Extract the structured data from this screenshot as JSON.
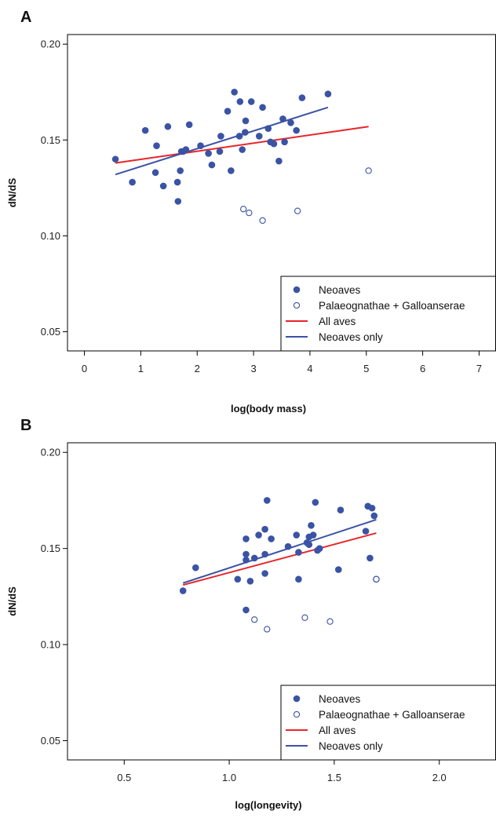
{
  "colors": {
    "neoaves": "#3a53a4",
    "all_aves_line": "#e8252a",
    "neoaves_line": "#3a53a4"
  },
  "chart_data": [
    {
      "panel_label": "A",
      "type": "scatter",
      "xlabel": "log(body mass)",
      "ylabel": "dN/dS",
      "xlim": [
        -0.3,
        7.3
      ],
      "ylim": [
        0.04,
        0.205
      ],
      "xticks": [
        0,
        1,
        2,
        3,
        4,
        5,
        6,
        7
      ],
      "xtick_labels": [
        "0",
        "1",
        "2",
        "3",
        "4",
        "5",
        "6",
        "7"
      ],
      "yticks": [
        0.05,
        0.1,
        0.15,
        0.2
      ],
      "ytick_labels": [
        "0.05",
        "0.10",
        "0.15",
        "0.20"
      ],
      "legend_position": "bottom-right",
      "series": [
        {
          "name": "Neoaves",
          "kind": "points",
          "marker": "filled",
          "x": [
            0.55,
            0.85,
            1.08,
            1.28,
            1.48,
            1.66,
            1.86,
            2.06,
            2.26,
            2.42,
            2.54,
            2.66,
            2.76,
            2.86,
            2.96,
            3.16,
            3.26,
            3.36,
            3.52,
            3.66,
            3.76,
            3.86,
            4.32,
            1.26,
            1.4,
            1.65,
            1.7,
            1.75,
            1.8,
            2.2,
            2.4,
            2.6,
            2.75,
            2.85,
            3.1,
            3.3,
            3.45,
            3.55,
            1.72,
            2.8
          ],
          "y": [
            0.14,
            0.128,
            0.155,
            0.147,
            0.157,
            0.118,
            0.158,
            0.147,
            0.137,
            0.152,
            0.165,
            0.175,
            0.17,
            0.16,
            0.17,
            0.167,
            0.156,
            0.148,
            0.161,
            0.159,
            0.155,
            0.172,
            0.174,
            0.133,
            0.126,
            0.128,
            0.134,
            0.144,
            0.145,
            0.143,
            0.144,
            0.134,
            0.152,
            0.154,
            0.152,
            0.149,
            0.139,
            0.149,
            0.144,
            0.145
          ]
        },
        {
          "name": "Palaeognathae + Galloanserae",
          "kind": "points",
          "marker": "open",
          "x": [
            2.82,
            2.92,
            3.16,
            3.78,
            5.04
          ],
          "y": [
            0.114,
            0.112,
            0.108,
            0.113,
            0.134
          ]
        },
        {
          "name": "All aves",
          "kind": "line",
          "x": [
            0.55,
            5.04
          ],
          "y": [
            0.138,
            0.157
          ]
        },
        {
          "name": "Neoaves only",
          "kind": "line",
          "x": [
            0.55,
            4.32
          ],
          "y": [
            0.132,
            0.167
          ]
        }
      ]
    },
    {
      "panel_label": "B",
      "type": "scatter",
      "xlabel": "log(longevity)",
      "ylabel": "dN/dS",
      "xlim": [
        0.23,
        2.27
      ],
      "ylim": [
        0.04,
        0.205
      ],
      "xticks": [
        0.5,
        1.0,
        1.5,
        2.0
      ],
      "xtick_labels": [
        "0.5",
        "1.0",
        "1.5",
        "2.0"
      ],
      "yticks": [
        0.05,
        0.1,
        0.15,
        0.2
      ],
      "ytick_labels": [
        "0.05",
        "0.10",
        "0.15",
        "0.20"
      ],
      "legend_position": "bottom-right",
      "series": [
        {
          "name": "Neoaves",
          "kind": "points",
          "marker": "filled",
          "x": [
            0.78,
            0.84,
            1.04,
            1.08,
            1.08,
            1.08,
            1.08,
            1.1,
            1.12,
            1.14,
            1.17,
            1.17,
            1.17,
            1.18,
            1.2,
            1.28,
            1.32,
            1.33,
            1.33,
            1.37,
            1.38,
            1.39,
            1.4,
            1.41,
            1.42,
            1.43,
            1.52,
            1.53,
            1.65,
            1.66,
            1.68,
            1.69,
            1.7,
            1.67,
            1.38
          ],
          "y": [
            0.128,
            0.14,
            0.134,
            0.155,
            0.147,
            0.144,
            0.118,
            0.133,
            0.145,
            0.157,
            0.16,
            0.147,
            0.137,
            0.175,
            0.155,
            0.151,
            0.157,
            0.148,
            0.134,
            0.153,
            0.156,
            0.162,
            0.157,
            0.174,
            0.149,
            0.15,
            0.139,
            0.17,
            0.159,
            0.172,
            0.171,
            0.167,
            0.134,
            0.145,
            0.152
          ]
        },
        {
          "name": "Palaeognathae + Galloanserae",
          "kind": "points",
          "marker": "open",
          "x": [
            1.12,
            1.18,
            1.36,
            1.48,
            1.7
          ],
          "y": [
            0.113,
            0.108,
            0.114,
            0.112,
            0.134
          ]
        },
        {
          "name": "All aves",
          "kind": "line",
          "x": [
            0.78,
            1.7
          ],
          "y": [
            0.131,
            0.158
          ]
        },
        {
          "name": "Neoaves only",
          "kind": "line",
          "x": [
            0.78,
            1.7
          ],
          "y": [
            0.132,
            0.165
          ]
        }
      ]
    }
  ]
}
